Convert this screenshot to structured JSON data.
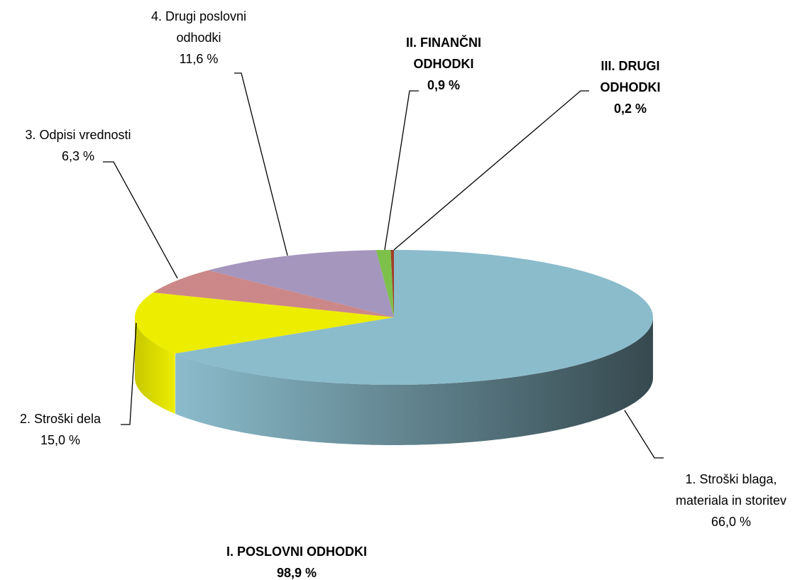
{
  "chart_data": {
    "type": "pie3d",
    "categories": [
      "1. Stroški blaga,\nmateriala in storitev",
      "2. Stroški dela",
      "3. Odpisi vrednosti",
      "4. Drugi poslovni\nodhodki",
      "II. FINANČNI\nODHODKI",
      "III. DRUGI\nODHODKI"
    ],
    "values": [
      66.0,
      15.0,
      6.3,
      11.6,
      0.9,
      0.2
    ],
    "value_labels": [
      "66,0 %",
      "15,0 %",
      "6,3 %",
      "11,6 %",
      "0,9 %",
      "0,2 %"
    ],
    "colors": [
      "#8bbccc",
      "#eded00",
      "#cc8888",
      "#a596be",
      "#7dc04a",
      "#a0402a"
    ],
    "annotations": [
      {
        "text": "I. POSLOVNI ODHODKI",
        "value": 98.9,
        "value_label": "98,9 %"
      }
    ]
  }
}
